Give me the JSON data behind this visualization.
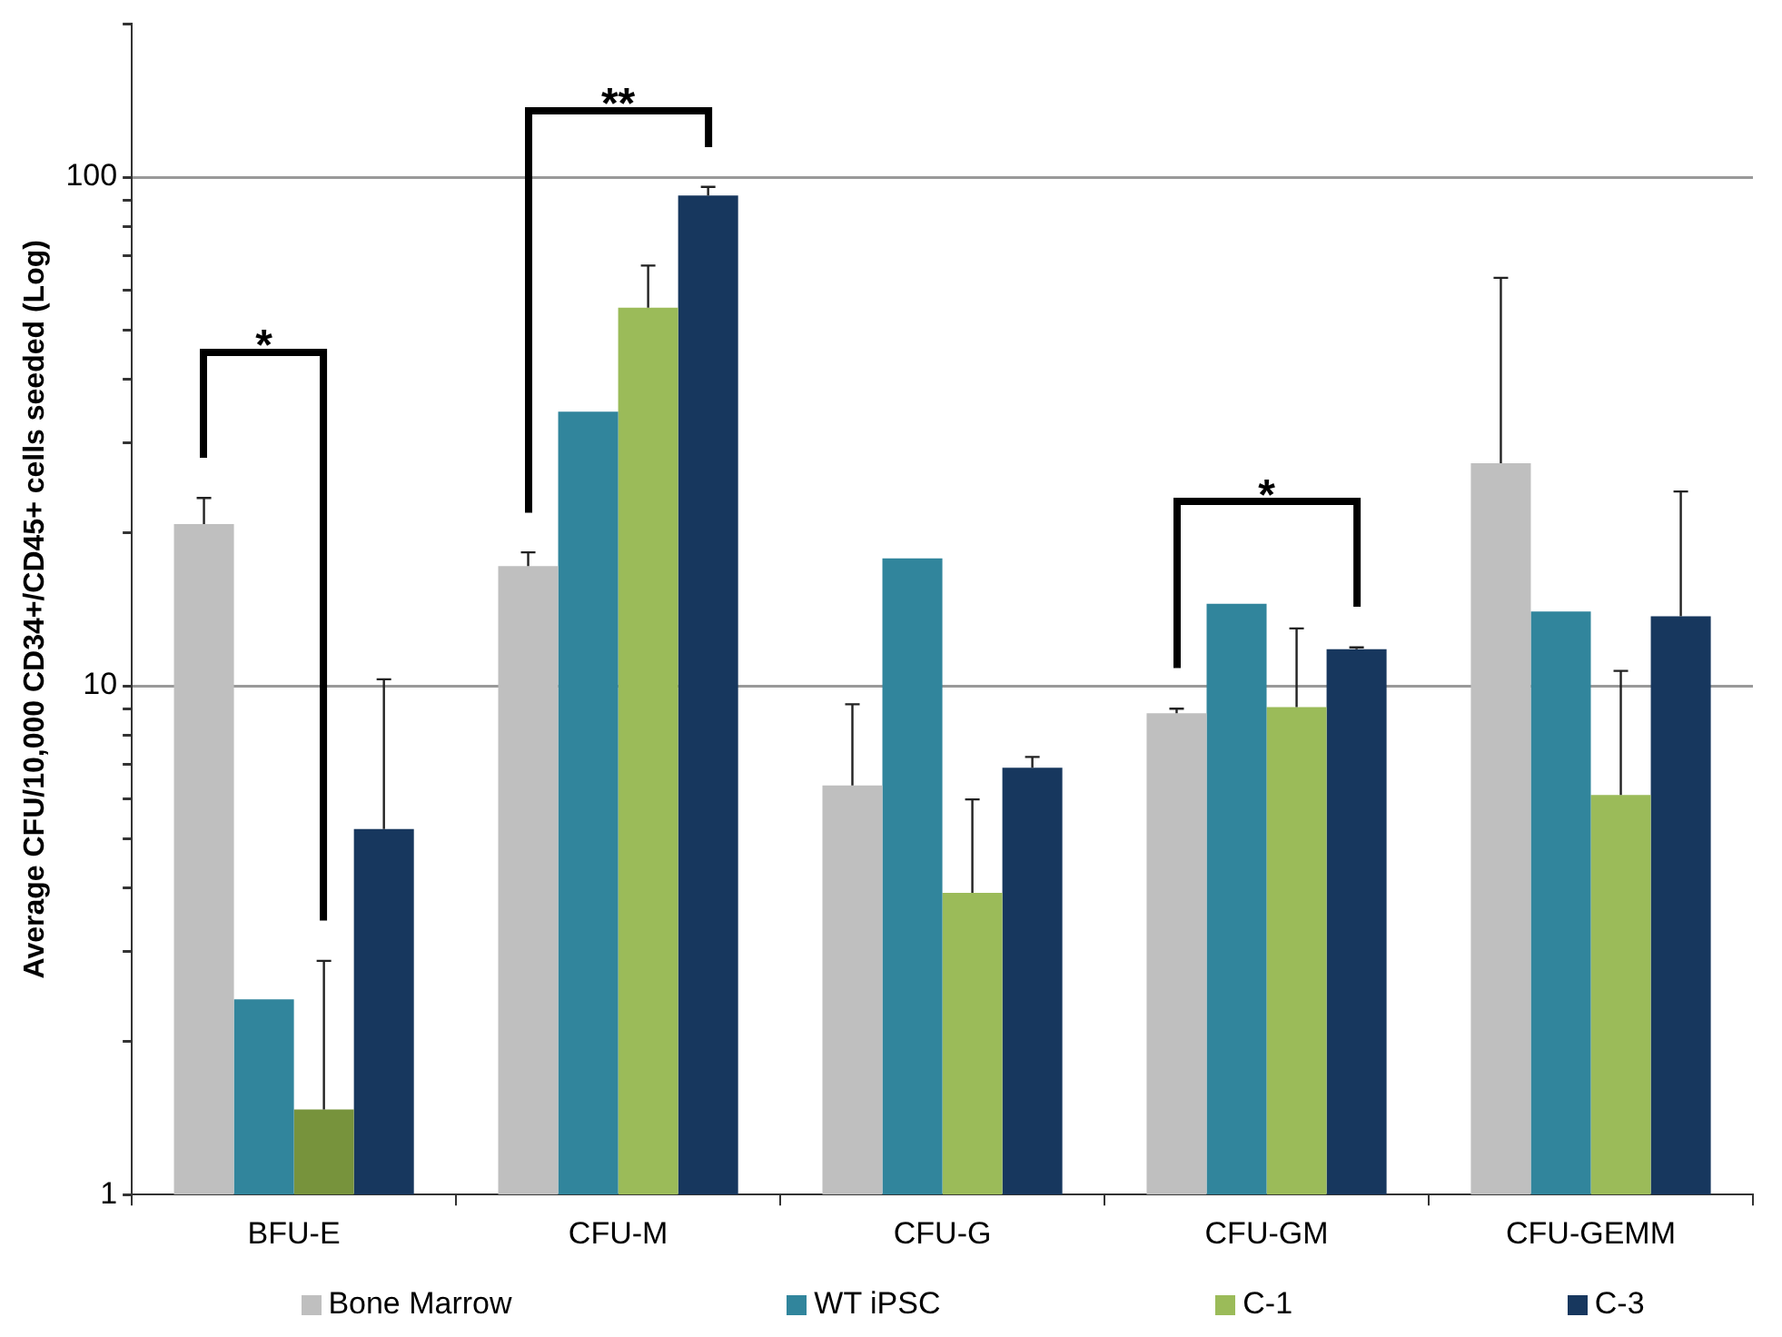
{
  "chart_data": {
    "type": "bar",
    "ylabel": "Average CFU/10,000 CD34+/CD45+ cells seeded (Log)",
    "categories": [
      "BFU-E",
      "CFU-M",
      "CFU-G",
      "CFU-GM",
      "CFU-GEMM"
    ],
    "series": [
      {
        "name": "Bone Marrow",
        "color": "#bfbfbf",
        "values": [
          20.8,
          17.2,
          6.37,
          8.83,
          27.4
        ],
        "errors": [
          [
            20.8,
            23.4
          ],
          [
            17.2,
            18.3
          ],
          [
            6.37,
            9.2
          ],
          [
            8.83,
            9.02
          ],
          [
            27.4,
            63.4
          ]
        ]
      },
      {
        "name": "WT iPSC",
        "color": "#31859c",
        "values": [
          2.42,
          34.6,
          17.8,
          14.5,
          14.0
        ]
      },
      {
        "name": "C-1",
        "color": "#9bbb59",
        "colors": [
          "#77933c",
          "#9bbb59",
          "#9bbb59",
          "#9bbb59",
          "#9bbb59"
        ],
        "values": [
          1.47,
          55.4,
          3.92,
          9.08,
          6.1
        ],
        "errors": [
          [
            1.47,
            2.88
          ],
          [
            55.4,
            67.0
          ],
          [
            3.92,
            5.98
          ],
          [
            9.08,
            12.97
          ],
          [
            6.1,
            10.7
          ]
        ]
      },
      {
        "name": "C-3",
        "color": "#17375e",
        "values": [
          5.23,
          92.0,
          6.9,
          11.8,
          13.7
        ],
        "errors": [
          [
            5.23,
            10.3
          ],
          [
            92.0,
            95.7
          ],
          [
            6.9,
            7.25
          ],
          [
            11.8,
            11.9
          ],
          [
            13.7,
            24.1
          ]
        ]
      }
    ],
    "log": "y",
    "ylim": [
      1,
      200
    ],
    "yticks": [
      1,
      {
        "value": 2,
        "label": null
      },
      {
        "value": 3,
        "label": null
      },
      {
        "value": 4,
        "label": null
      },
      {
        "value": 5,
        "label": null
      },
      {
        "value": 6,
        "label": null
      },
      {
        "value": 7,
        "label": null
      },
      {
        "value": 8,
        "label": null
      },
      {
        "value": 9,
        "label": null
      },
      10,
      {
        "value": 20,
        "label": null
      },
      {
        "value": 30,
        "label": null
      },
      {
        "value": 40,
        "label": null
      },
      {
        "value": 50,
        "label": null
      },
      {
        "value": 60,
        "label": null
      },
      {
        "value": 70,
        "label": null
      },
      {
        "value": 80,
        "label": null
      },
      {
        "value": 90,
        "label": null
      },
      100,
      {
        "value": 200,
        "label": null
      }
    ],
    "grid": "y",
    "legend": "bottom",
    "annotations": [
      "*",
      "**",
      "*"
    ]
  }
}
